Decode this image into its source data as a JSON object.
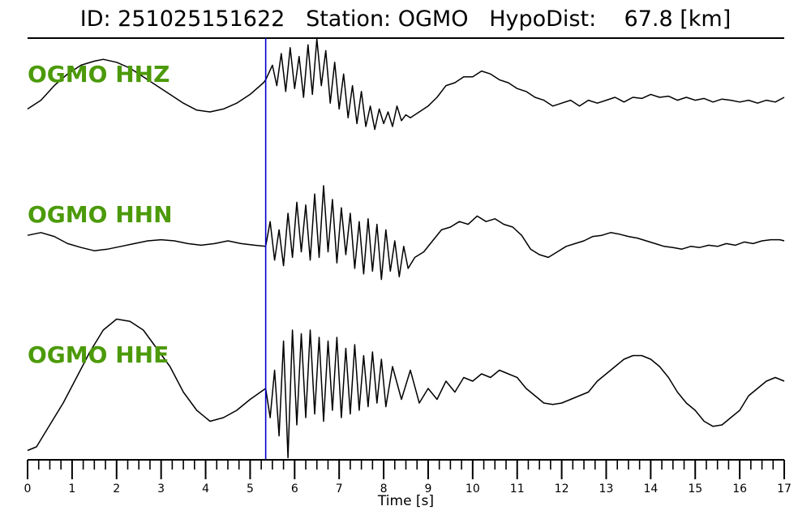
{
  "title": "ID: 251025151622   Station: OGMO   HypoDist:    67.8 [km]",
  "chart_data": {
    "type": "line",
    "xlabel": "Time [s]",
    "xlim": [
      0,
      17
    ],
    "x_ticks": [
      "0",
      "1",
      "2",
      "3",
      "4",
      "5",
      "6",
      "7",
      "8",
      "9",
      "10",
      "11",
      "12",
      "13",
      "14",
      "15",
      "16",
      "17"
    ],
    "minor_tick_step": 0.25,
    "grid": false,
    "pick_time": 5.35,
    "pick_color": "#0000cc",
    "trace_color": "#000000",
    "label_color": "#4c9a0a",
    "series": [
      {
        "name": "OGMO HHZ",
        "x": [
          0,
          0.3,
          0.6,
          0.9,
          1.2,
          1.5,
          1.7,
          2.0,
          2.3,
          2.6,
          2.9,
          3.2,
          3.5,
          3.8,
          4.1,
          4.4,
          4.7,
          5.0,
          5.3,
          5.35,
          5.5,
          5.6,
          5.7,
          5.8,
          5.9,
          6.0,
          6.1,
          6.2,
          6.3,
          6.4,
          6.5,
          6.6,
          6.7,
          6.8,
          6.9,
          7.0,
          7.1,
          7.2,
          7.3,
          7.4,
          7.5,
          7.6,
          7.7,
          7.8,
          7.9,
          8.0,
          8.1,
          8.2,
          8.3,
          8.4,
          8.5,
          8.6,
          8.8,
          9.0,
          9.2,
          9.4,
          9.6,
          9.8,
          10.0,
          10.2,
          10.4,
          10.6,
          10.8,
          11.0,
          11.2,
          11.4,
          11.6,
          11.8,
          12.0,
          12.2,
          12.4,
          12.6,
          12.8,
          13.0,
          13.2,
          13.4,
          13.6,
          13.8,
          14.0,
          14.2,
          14.4,
          14.6,
          14.8,
          15.0,
          15.2,
          15.4,
          15.6,
          15.8,
          16.0,
          16.2,
          16.4,
          16.6,
          16.8,
          17.0
        ],
        "y": [
          -0.2,
          -0.05,
          0.2,
          0.4,
          0.55,
          0.62,
          0.65,
          0.6,
          0.5,
          0.35,
          0.2,
          0.05,
          -0.1,
          -0.22,
          -0.25,
          -0.2,
          -0.1,
          0.05,
          0.25,
          0.3,
          0.55,
          0.2,
          0.75,
          0.1,
          0.85,
          0.15,
          0.7,
          0.0,
          0.9,
          0.05,
          1.0,
          0.2,
          0.8,
          -0.1,
          0.6,
          -0.2,
          0.4,
          -0.35,
          0.2,
          -0.45,
          0.1,
          -0.5,
          -0.15,
          -0.55,
          -0.2,
          -0.45,
          -0.25,
          -0.5,
          -0.15,
          -0.4,
          -0.3,
          -0.35,
          -0.25,
          -0.15,
          0.0,
          0.2,
          0.25,
          0.35,
          0.35,
          0.45,
          0.4,
          0.3,
          0.25,
          0.15,
          0.1,
          0.0,
          -0.05,
          -0.15,
          -0.1,
          -0.05,
          -0.15,
          -0.05,
          -0.1,
          -0.05,
          0.0,
          -0.08,
          0.0,
          -0.02,
          0.05,
          0.0,
          0.02,
          -0.05,
          0.0,
          -0.05,
          -0.02,
          -0.08,
          -0.03,
          -0.05,
          -0.08,
          -0.05,
          -0.1,
          -0.05,
          -0.08,
          0.0
        ]
      },
      {
        "name": "OGMO HHN",
        "x": [
          0,
          0.3,
          0.6,
          0.9,
          1.2,
          1.5,
          1.8,
          2.1,
          2.4,
          2.7,
          3.0,
          3.3,
          3.6,
          3.9,
          4.2,
          4.5,
          4.8,
          5.1,
          5.35,
          5.45,
          5.55,
          5.65,
          5.75,
          5.85,
          5.95,
          6.05,
          6.15,
          6.25,
          6.35,
          6.45,
          6.55,
          6.65,
          6.75,
          6.85,
          6.95,
          7.05,
          7.15,
          7.25,
          7.35,
          7.45,
          7.55,
          7.65,
          7.75,
          7.85,
          7.95,
          8.05,
          8.15,
          8.25,
          8.35,
          8.45,
          8.55,
          8.7,
          8.9,
          9.1,
          9.3,
          9.5,
          9.7,
          9.9,
          10.1,
          10.3,
          10.5,
          10.7,
          10.9,
          11.1,
          11.3,
          11.5,
          11.7,
          11.9,
          12.1,
          12.3,
          12.5,
          12.7,
          12.9,
          13.1,
          13.3,
          13.5,
          13.7,
          13.9,
          14.1,
          14.3,
          14.5,
          14.7,
          14.9,
          15.1,
          15.3,
          15.5,
          15.7,
          15.9,
          16.1,
          16.3,
          16.5,
          16.7,
          16.9,
          17.0
        ],
        "y": [
          0.1,
          0.15,
          0.08,
          -0.05,
          -0.12,
          -0.18,
          -0.15,
          -0.1,
          -0.05,
          0.0,
          0.02,
          0.0,
          -0.05,
          -0.08,
          -0.05,
          0.0,
          -0.05,
          -0.08,
          -0.1,
          0.35,
          -0.35,
          0.2,
          -0.45,
          0.5,
          -0.3,
          0.7,
          -0.2,
          0.65,
          -0.35,
          0.85,
          -0.3,
          1.0,
          -0.2,
          0.75,
          -0.4,
          0.6,
          -0.25,
          0.5,
          -0.5,
          0.35,
          -0.6,
          0.4,
          -0.55,
          0.3,
          -0.7,
          0.2,
          -0.55,
          0.0,
          -0.65,
          -0.1,
          -0.5,
          -0.3,
          -0.2,
          0.0,
          0.2,
          0.25,
          0.35,
          0.3,
          0.45,
          0.35,
          0.4,
          0.3,
          0.25,
          0.1,
          -0.15,
          -0.25,
          -0.3,
          -0.2,
          -0.1,
          -0.05,
          0.0,
          0.08,
          0.1,
          0.15,
          0.12,
          0.08,
          0.05,
          0.0,
          -0.05,
          -0.1,
          -0.12,
          -0.15,
          -0.1,
          -0.12,
          -0.08,
          -0.1,
          -0.05,
          -0.08,
          -0.02,
          -0.05,
          0.0,
          0.02,
          0.02,
          0.0
        ]
      },
      {
        "name": "OGMO HHE",
        "x": [
          0,
          0.2,
          0.5,
          0.8,
          1.1,
          1.4,
          1.7,
          2.0,
          2.3,
          2.6,
          2.9,
          3.2,
          3.5,
          3.8,
          4.1,
          4.4,
          4.7,
          5.0,
          5.35,
          5.45,
          5.55,
          5.65,
          5.75,
          5.85,
          5.95,
          6.05,
          6.15,
          6.25,
          6.35,
          6.45,
          6.55,
          6.65,
          6.75,
          6.85,
          6.95,
          7.05,
          7.15,
          7.25,
          7.35,
          7.45,
          7.55,
          7.65,
          7.75,
          7.85,
          7.95,
          8.05,
          8.2,
          8.4,
          8.6,
          8.8,
          9.0,
          9.2,
          9.4,
          9.6,
          9.8,
          10.0,
          10.2,
          10.4,
          10.6,
          10.8,
          11.0,
          11.2,
          11.4,
          11.6,
          11.8,
          12.0,
          12.2,
          12.4,
          12.6,
          12.8,
          13.0,
          13.2,
          13.4,
          13.6,
          13.8,
          14.0,
          14.2,
          14.4,
          14.6,
          14.8,
          15.0,
          15.2,
          15.4,
          15.6,
          15.8,
          16.0,
          16.2,
          16.4,
          16.6,
          16.8,
          17.0
        ],
        "y": [
          -0.95,
          -0.9,
          -0.6,
          -0.3,
          0.05,
          0.4,
          0.7,
          0.85,
          0.82,
          0.7,
          0.45,
          0.2,
          -0.15,
          -0.4,
          -0.55,
          -0.5,
          -0.4,
          -0.25,
          -0.1,
          -0.5,
          0.15,
          -0.75,
          0.55,
          -1.05,
          0.7,
          -0.6,
          0.65,
          -0.5,
          0.7,
          -0.45,
          0.6,
          -0.55,
          0.55,
          -0.4,
          0.6,
          -0.5,
          0.45,
          -0.45,
          0.5,
          -0.4,
          0.35,
          -0.35,
          0.4,
          -0.3,
          0.3,
          -0.35,
          0.2,
          -0.25,
          0.15,
          -0.3,
          -0.1,
          -0.25,
          0.0,
          -0.15,
          0.05,
          0.0,
          0.1,
          0.05,
          0.15,
          0.1,
          0.05,
          -0.1,
          -0.2,
          -0.3,
          -0.32,
          -0.3,
          -0.25,
          -0.2,
          -0.15,
          0.0,
          0.1,
          0.2,
          0.3,
          0.35,
          0.35,
          0.3,
          0.2,
          0.05,
          -0.15,
          -0.3,
          -0.4,
          -0.55,
          -0.62,
          -0.6,
          -0.5,
          -0.4,
          -0.2,
          -0.1,
          0.0,
          0.05,
          0.0
        ]
      }
    ]
  }
}
